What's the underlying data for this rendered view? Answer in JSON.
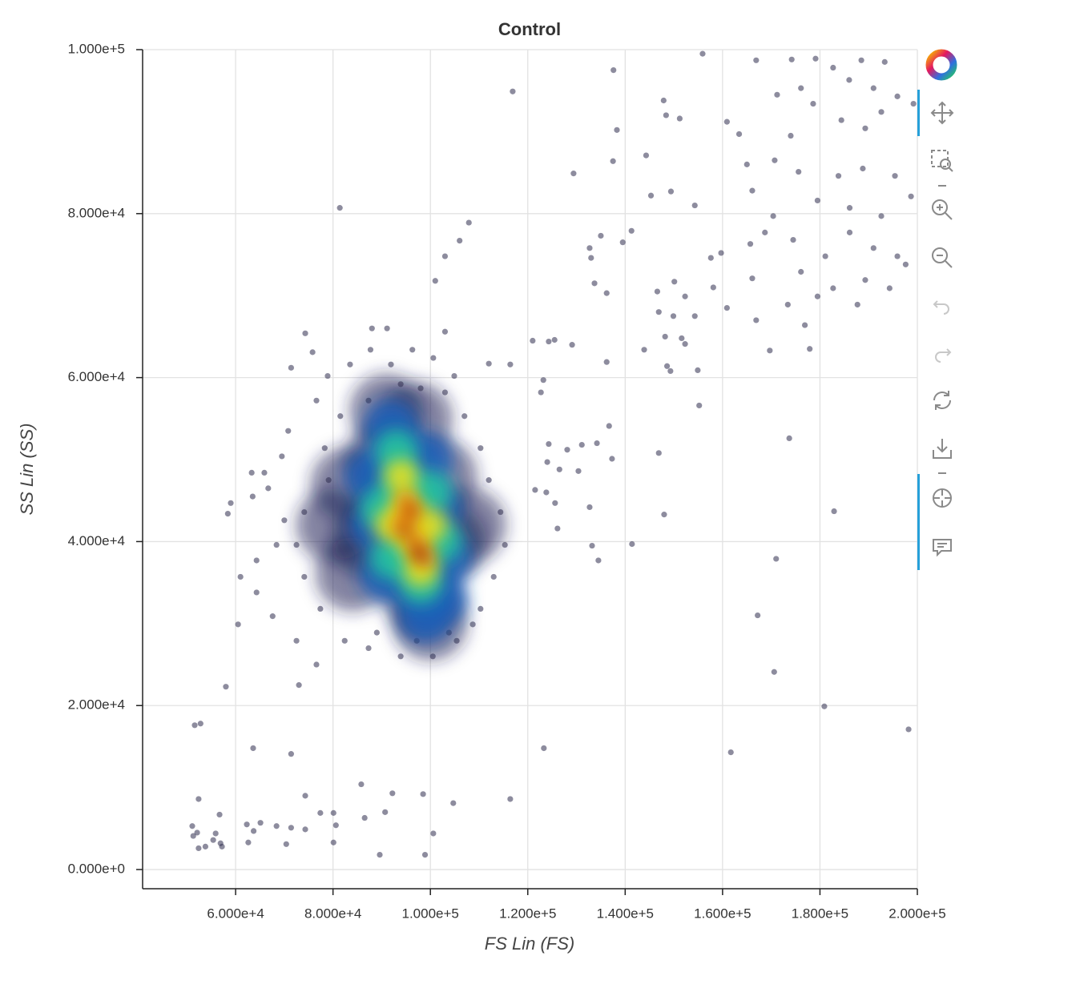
{
  "chart_data": {
    "type": "scatter",
    "title": "Control",
    "xlabel": "FS Lin (FS)",
    "ylabel": "SS Lin (SS)",
    "xlim": [
      40900,
      200000
    ],
    "ylim": [
      -2340,
      100000
    ],
    "grid": true,
    "xticks": [
      {
        "value": 60000,
        "label": "6.000e+4"
      },
      {
        "value": 80000,
        "label": "8.000e+4"
      },
      {
        "value": 100000,
        "label": "1.000e+5"
      },
      {
        "value": 120000,
        "label": "1.200e+5"
      },
      {
        "value": 140000,
        "label": "1.400e+5"
      },
      {
        "value": 160000,
        "label": "1.600e+5"
      },
      {
        "value": 180000,
        "label": "1.800e+5"
      },
      {
        "value": 200000,
        "label": "2.000e+5"
      }
    ],
    "yticks": [
      {
        "value": 0,
        "label": "0.000e+0"
      },
      {
        "value": 20000,
        "label": "2.000e+4"
      },
      {
        "value": 40000,
        "label": "4.000e+4"
      },
      {
        "value": 60000,
        "label": "6.000e+4"
      },
      {
        "value": 80000,
        "label": "8.000e+4"
      },
      {
        "value": 100000,
        "label": "1.000e+5"
      }
    ],
    "series": [
      {
        "color": "#1e2358",
        "x": [
          90000,
          92000,
          95000,
          98000,
          87000,
          84000,
          102000,
          104000,
          91000,
          97000,
          100000,
          80000,
          108000,
          83000
        ],
        "values": [
          50000,
          44000,
          38000,
          33000,
          40000,
          36000,
          48000,
          40000,
          56000,
          55000,
          30000,
          42000,
          42000,
          47000
        ]
      },
      {
        "color": "#2f2e4f",
        "x": [
          116900,
          137600,
          155900,
          179100,
          166900,
          174200,
          188500,
          193300,
          182700,
          186000,
          176100,
          171200,
          191000,
          195900,
          178600,
          184400,
          189300,
          192600,
          199200,
          174000,
          170700,
          175600,
          183800,
          188800,
          195400,
          198700,
          179500,
          186100,
          192600,
          170400,
          168700,
          174500,
          181100,
          186100,
          191000,
          195900,
          176100,
          182700,
          189300,
          194300,
          197600,
          179500,
          187700,
          173400,
          166900,
          169700,
          177900,
          176900,
          160900,
          163400,
          165000,
          166100,
          165700,
          166100,
          160900,
          159700,
          157600,
          158100,
          154300,
          149400,
          145300,
          144300,
          147900,
          151200,
          148400,
          138300,
          137500,
          141300,
          139500,
          135000,
          132700,
          133000,
          129400,
          133700,
          136200,
          146600,
          150100,
          152300,
          149900,
          148200,
          146900,
          152300,
          151600,
          154300,
          143900,
          148600,
          149300,
          154900,
          155200,
          136200,
          129100,
          125500,
          124300,
          121000,
          116400,
          123200,
          122700,
          136700,
          134200,
          131100,
          137300,
          128100,
          124300,
          124000,
          126500,
          130400,
          146900,
          123800,
          121500,
          125600,
          132700,
          126100,
          133200,
          134500,
          141400,
          148000,
          173700,
          182900,
          171000,
          167200,
          170600,
          180900,
          198200,
          161700,
          123300,
          116400,
          104700,
          98500,
          100600,
          98900,
          89600,
          92200,
          90700,
          86500,
          85800,
          80100,
          80600,
          80100,
          77400,
          74300,
          74300,
          71400,
          70400,
          68400,
          65100,
          63700,
          62300,
          62600,
          52400,
          52100,
          51100,
          51300,
          53800,
          55400,
          55900,
          56900,
          57200,
          56700,
          52400,
          51600,
          52800,
          63600,
          71400,
          58000,
          73000,
          58400,
          59000,
          81400,
          101000,
          103000,
          106000,
          107900,
          103000,
          112000,
          104900,
          74300,
          88000,
          91100,
          87700,
          96300,
          100600,
          75800,
          71400,
          78900,
          83500,
          91900,
          93900,
          98000,
          103000,
          76600,
          70800,
          69500,
          65900,
          63300,
          61000,
          64300,
          67600,
          72500,
          76600,
          82400,
          87300,
          93900,
          100500,
          105400,
          110300,
          113000,
          115300,
          114400,
          112000,
          110300,
          107000,
          74100,
          72500,
          74100,
          77400,
          79100,
          78300,
          81500,
          87300,
          89000,
          97200,
          103800,
          108700,
          60500,
          64300,
          68400,
          70000,
          63500,
          66700
        ],
        "values": [
          94900,
          97500,
          99500,
          98900,
          98700,
          98800,
          98700,
          98500,
          97800,
          96300,
          95300,
          94500,
          95300,
          94300,
          93400,
          91400,
          90400,
          92400,
          93400,
          89500,
          86500,
          85100,
          84600,
          85500,
          84600,
          82100,
          81600,
          80700,
          79700,
          79700,
          77700,
          76800,
          74800,
          77700,
          75800,
          74800,
          72900,
          70900,
          71900,
          70900,
          73800,
          69900,
          68900,
          68900,
          67000,
          63300,
          63500,
          66400,
          91200,
          89700,
          86000,
          82800,
          76300,
          72100,
          68500,
          75200,
          74600,
          71000,
          81000,
          82700,
          82200,
          87100,
          93800,
          91600,
          92000,
          90200,
          86400,
          77900,
          76500,
          77300,
          75800,
          74600,
          84900,
          71500,
          70300,
          70500,
          71700,
          69900,
          67500,
          65000,
          68000,
          64100,
          64800,
          67500,
          63400,
          61400,
          60800,
          60900,
          56600,
          61900,
          64000,
          64600,
          64400,
          64500,
          61600,
          59700,
          58200,
          54100,
          52000,
          51800,
          50100,
          51200,
          51900,
          49700,
          48800,
          48600,
          50800,
          46000,
          46300,
          44700,
          44200,
          41600,
          39500,
          37700,
          39700,
          43300,
          52600,
          43700,
          37900,
          31000,
          24100,
          19900,
          17100,
          14300,
          14800,
          8600,
          8100,
          9200,
          4400,
          1800,
          1800,
          9300,
          7000,
          6300,
          10400,
          6900,
          5400,
          3300,
          6900,
          9000,
          4900,
          5100,
          3100,
          5300,
          5700,
          4700,
          5500,
          3300,
          2600,
          4500,
          5300,
          4100,
          2800,
          3600,
          4400,
          3200,
          2800,
          6700,
          8600,
          17600,
          17800,
          14800,
          14100,
          22300,
          22500,
          43400,
          44700,
          80700,
          71800,
          74800,
          76700,
          78900,
          65600,
          61700,
          60200,
          65400,
          66000,
          66000,
          63400,
          63400,
          62400,
          63100,
          61200,
          60200,
          61600,
          61600,
          59200,
          58700,
          58200,
          57200,
          53500,
          50400,
          48400,
          48400,
          35700,
          33800,
          30900,
          27900,
          25000,
          27900,
          27000,
          26000,
          26000,
          27900,
          31800,
          35700,
          39600,
          43600,
          47500,
          51400,
          55300,
          43600,
          39600,
          35700,
          31800,
          47500,
          51400,
          55300,
          57200,
          28900,
          27900,
          28900,
          29900,
          29900,
          37700,
          39600,
          42600,
          45500,
          46500
        ]
      },
      {
        "color": "#1d5fb8",
        "x": [
          92000,
          93000,
          94000,
          95000,
          96500,
          98000,
          99000,
          88000,
          89000,
          91000,
          99000,
          101000,
          103000,
          102000
        ],
        "values": [
          54000,
          50000,
          46000,
          42000,
          38000,
          34000,
          31000,
          48000,
          42000,
          36000,
          50000,
          44000,
          38000,
          33000
        ]
      },
      {
        "color": "#25c3a0",
        "x": [
          93000,
          94000,
          95000,
          96500,
          98000,
          90000,
          92000,
          100000,
          102000
        ],
        "values": [
          51000,
          47000,
          43000,
          39000,
          35000,
          44000,
          38000,
          46000,
          40000
        ]
      },
      {
        "color": "#e8e020",
        "x": [
          94000,
          95000,
          96500,
          98000,
          92000,
          100000
        ],
        "values": [
          48000,
          44000,
          40000,
          36500,
          42000,
          42000
        ]
      },
      {
        "color": "#f08c10",
        "x": [
          95000,
          94000,
          97000,
          99000,
          96000
        ],
        "values": [
          45000,
          42000,
          40000,
          38000,
          43500
        ]
      },
      {
        "color": "#8a0c0c",
        "x": [
          94700,
          97200,
          98000,
          96000
        ],
        "values": [
          41300,
          38900,
          38200,
          43800
        ]
      }
    ]
  }
}
